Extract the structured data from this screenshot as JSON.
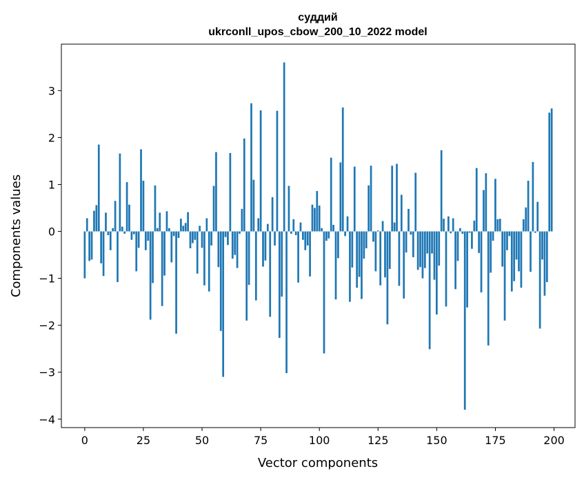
{
  "chart_data": {
    "type": "bar",
    "title_line1": "суддий",
    "title_line2": "ukrconll_upos_cbow_200_10_2022 model",
    "xlabel": "Vector components",
    "ylabel": "Components values",
    "xlim": [
      -9.95,
      208.95
    ],
    "ylim": [
      -4.18,
      3.99
    ],
    "xticks": [
      0,
      25,
      50,
      75,
      100,
      125,
      150,
      175,
      200
    ],
    "yticks": [
      -4,
      -3,
      -2,
      -1,
      0,
      1,
      2,
      3
    ],
    "bar_color": "#1f77b4",
    "grid": false,
    "x": [
      0,
      1,
      2,
      3,
      4,
      5,
      6,
      7,
      8,
      9,
      10,
      11,
      12,
      13,
      14,
      15,
      16,
      17,
      18,
      19,
      20,
      21,
      22,
      23,
      24,
      25,
      26,
      27,
      28,
      29,
      30,
      31,
      32,
      33,
      34,
      35,
      36,
      37,
      38,
      39,
      40,
      41,
      42,
      43,
      44,
      45,
      46,
      47,
      48,
      49,
      50,
      51,
      52,
      53,
      54,
      55,
      56,
      57,
      58,
      59,
      60,
      61,
      62,
      63,
      64,
      65,
      66,
      67,
      68,
      69,
      70,
      71,
      72,
      73,
      74,
      75,
      76,
      77,
      78,
      79,
      80,
      81,
      82,
      83,
      84,
      85,
      86,
      87,
      88,
      89,
      90,
      91,
      92,
      93,
      94,
      95,
      96,
      97,
      98,
      99,
      100,
      101,
      102,
      103,
      104,
      105,
      106,
      107,
      108,
      109,
      110,
      111,
      112,
      113,
      114,
      115,
      116,
      117,
      118,
      119,
      120,
      121,
      122,
      123,
      124,
      125,
      126,
      127,
      128,
      129,
      130,
      131,
      132,
      133,
      134,
      135,
      136,
      137,
      138,
      139,
      140,
      141,
      142,
      143,
      144,
      145,
      146,
      147,
      148,
      149,
      150,
      151,
      152,
      153,
      154,
      155,
      156,
      157,
      158,
      159,
      160,
      161,
      162,
      163,
      164,
      165,
      166,
      167,
      168,
      169,
      170,
      171,
      172,
      173,
      174,
      175,
      176,
      177,
      178,
      179,
      180,
      181,
      182,
      183,
      184,
      185,
      186,
      187,
      188,
      189,
      190,
      191,
      192,
      193,
      194,
      195,
      196,
      197,
      198,
      199
    ],
    "values": [
      -1.0,
      0.28,
      -0.63,
      -0.6,
      0.44,
      0.56,
      1.85,
      -0.68,
      -0.95,
      0.4,
      -0.08,
      -0.4,
      0.07,
      0.65,
      -1.08,
      1.66,
      0.1,
      -0.05,
      1.05,
      0.57,
      -0.18,
      -0.06,
      -0.85,
      -0.35,
      1.75,
      1.08,
      -0.4,
      -0.2,
      -1.88,
      -1.1,
      0.98,
      0.07,
      0.4,
      -1.59,
      -0.94,
      0.43,
      0.07,
      -0.66,
      -0.1,
      -2.18,
      -0.14,
      0.27,
      0.12,
      0.18,
      0.41,
      -0.36,
      -0.25,
      -0.18,
      -0.9,
      0.12,
      -0.35,
      -1.15,
      0.28,
      -1.28,
      -0.3,
      0.97,
      1.69,
      -0.76,
      -2.12,
      -3.1,
      -0.12,
      -0.29,
      1.67,
      -0.58,
      -0.5,
      -0.78,
      -0.05,
      0.48,
      1.98,
      -1.9,
      -1.14,
      2.73,
      1.1,
      -1.47,
      0.28,
      2.58,
      -0.75,
      -0.62,
      0.16,
      -1.82,
      0.73,
      -0.3,
      2.57,
      -2.27,
      -1.39,
      3.6,
      -3.02,
      0.97,
      -0.05,
      0.26,
      -0.08,
      -1.09,
      0.19,
      -0.18,
      -0.4,
      -0.3,
      -0.96,
      0.57,
      0.5,
      0.86,
      0.55,
      0.07,
      -2.6,
      -0.2,
      -0.15,
      1.57,
      0.14,
      -1.45,
      -0.57,
      1.47,
      2.64,
      -0.1,
      0.32,
      -1.5,
      -0.77,
      1.38,
      -1.2,
      -0.97,
      -1.44,
      -0.58,
      -0.36,
      0.98,
      1.4,
      -0.22,
      -0.85,
      0.02,
      -1.15,
      0.22,
      -0.98,
      -1.98,
      -0.8,
      1.4,
      0.19,
      1.44,
      -1.16,
      0.78,
      -1.43,
      -0.45,
      0.48,
      -0.07,
      -0.55,
      1.25,
      -0.82,
      -0.76,
      -1.0,
      -0.78,
      -0.47,
      -2.51,
      -0.47,
      -1.03,
      -1.77,
      -0.73,
      1.73,
      0.27,
      -1.6,
      0.32,
      -0.04,
      0.28,
      -1.23,
      -0.63,
      0.07,
      -0.05,
      -3.8,
      -1.62,
      -0.03,
      -0.37,
      0.23,
      1.35,
      -0.46,
      -1.3,
      0.88,
      1.24,
      -2.43,
      -0.88,
      -0.2,
      1.12,
      0.26,
      0.27,
      -0.75,
      -1.9,
      -0.4,
      -0.1,
      -1.28,
      -1.06,
      -0.6,
      -0.85,
      -1.2,
      0.26,
      0.51,
      1.08,
      -0.86,
      1.48,
      -0.03,
      0.63,
      -2.07,
      -0.6,
      -1.37,
      -1.08,
      2.53,
      2.62
    ]
  }
}
